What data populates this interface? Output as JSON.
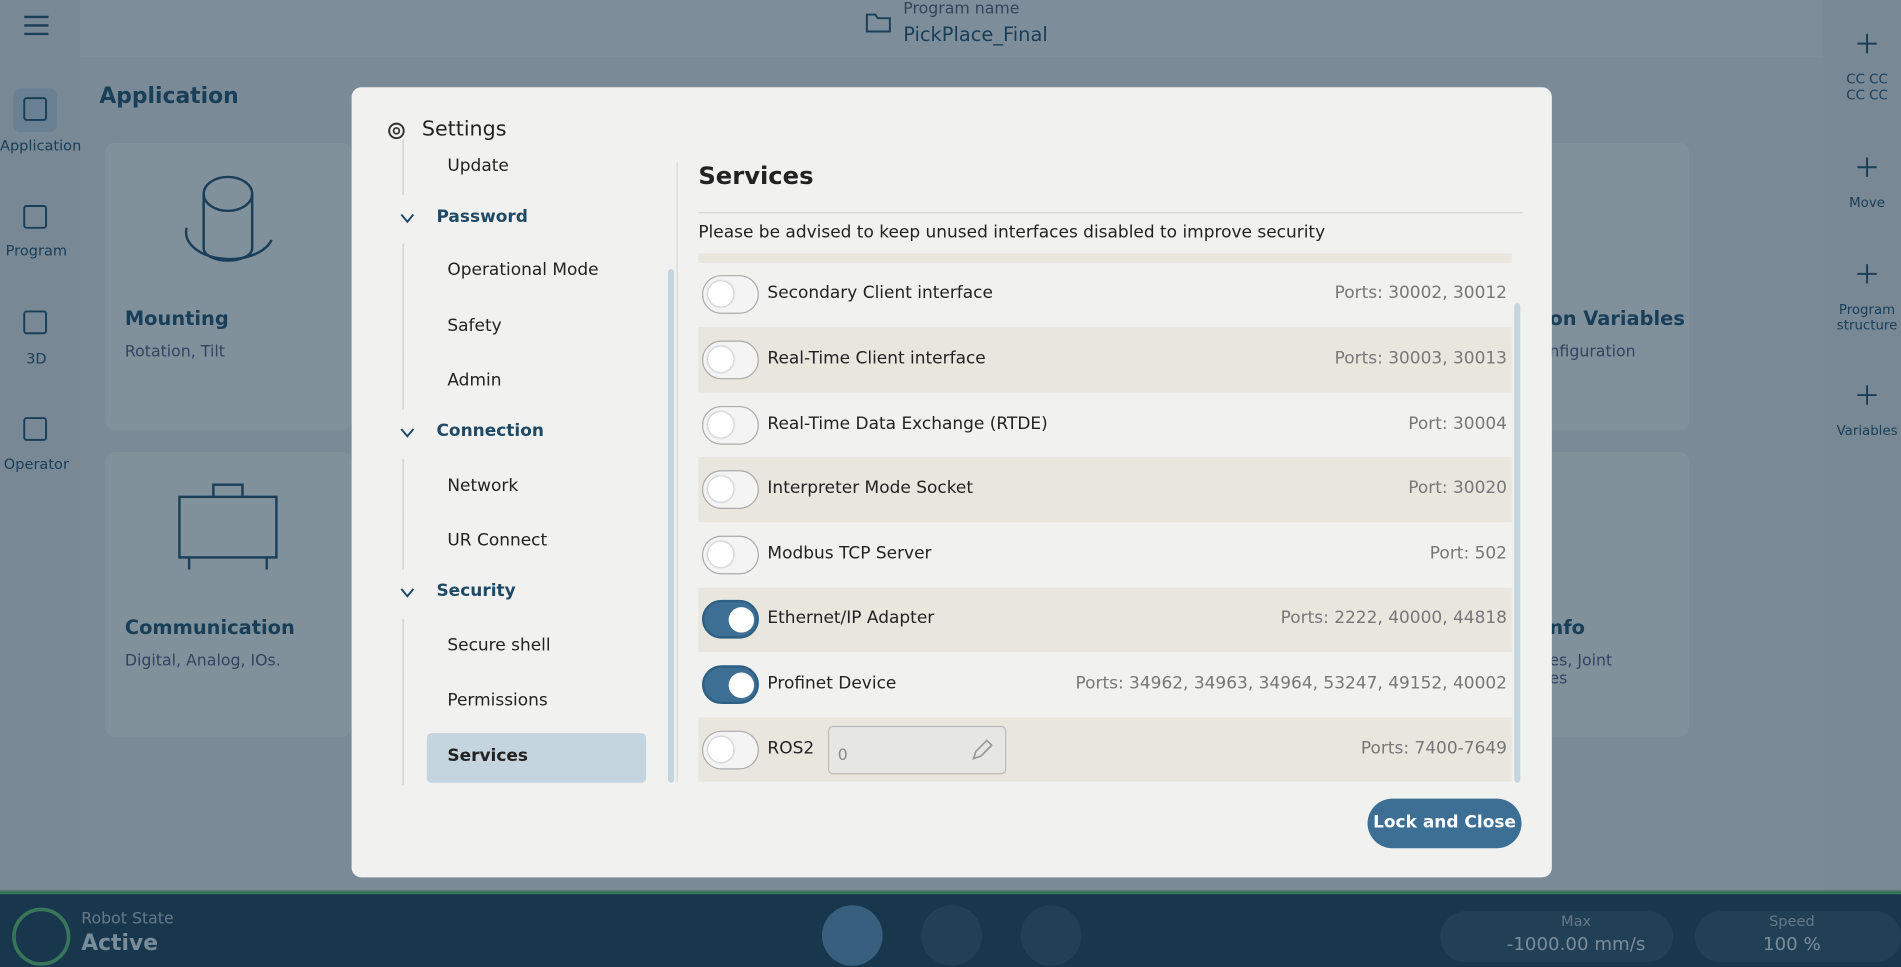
{
  "header": {
    "program_name_label": "Program name",
    "program_name": "PickPlace_Final"
  },
  "left_nav": [
    {
      "label": "Application",
      "active": true
    },
    {
      "label": "Program",
      "active": false
    },
    {
      "label": "3D",
      "active": false
    },
    {
      "label": "Operator",
      "active": false
    }
  ],
  "right_nav": [
    "CC CC\nCC CC",
    "Move",
    "Program\nstructure",
    "Variables"
  ],
  "page": {
    "title": "Application",
    "cards": [
      {
        "title": "Mounting",
        "subtitle": "Rotation, Tilt"
      },
      {
        "title": "Communication",
        "subtitle": "Digital, Analog, IOs."
      },
      {
        "title": "on Variables",
        "subtitle": "nfiguration"
      },
      {
        "title": "nfo",
        "subtitle": "es, Joint\nes"
      }
    ]
  },
  "dialog": {
    "title": "Settings",
    "nav": [
      {
        "label": "Update",
        "kind": "item",
        "selected": false
      },
      {
        "label": "Password",
        "kind": "section",
        "selected": false
      },
      {
        "label": "Operational Mode",
        "kind": "item",
        "selected": false
      },
      {
        "label": "Safety",
        "kind": "item",
        "selected": false
      },
      {
        "label": "Admin",
        "kind": "item",
        "selected": false
      },
      {
        "label": "Connection",
        "kind": "section",
        "selected": false
      },
      {
        "label": "Network",
        "kind": "item",
        "selected": false
      },
      {
        "label": "UR Connect",
        "kind": "item",
        "selected": false
      },
      {
        "label": "Security",
        "kind": "section",
        "selected": false
      },
      {
        "label": "Secure shell",
        "kind": "item",
        "selected": false
      },
      {
        "label": "Permissions",
        "kind": "item",
        "selected": false
      },
      {
        "label": "Services",
        "kind": "item",
        "selected": true
      }
    ],
    "section_title": "Services",
    "advisory": "Please be advised to keep unused interfaces disabled to improve security",
    "services": [
      {
        "name": "Secondary Client interface",
        "ports": "Ports: 30002, 30012",
        "enabled": false
      },
      {
        "name": "Real-Time Client interface",
        "ports": "Ports: 30003, 30013",
        "enabled": false
      },
      {
        "name": "Real-Time Data Exchange (RTDE)",
        "ports": "Port: 30004",
        "enabled": false
      },
      {
        "name": "Interpreter Mode Socket",
        "ports": "Port: 30020",
        "enabled": false
      },
      {
        "name": "Modbus TCP Server",
        "ports": "Port: 502",
        "enabled": false
      },
      {
        "name": "Ethernet/IP Adapter",
        "ports": "Ports: 2222, 40000, 44818",
        "enabled": true
      },
      {
        "name": "Profinet Device",
        "ports": "Ports: 34962, 34963, 34964, 53247, 49152, 40002",
        "enabled": true
      },
      {
        "name": "ROS2",
        "ports": "Ports: 7400-7649",
        "enabled": false,
        "input": "0"
      }
    ],
    "button": "Lock and Close"
  },
  "status_bar": {
    "robot_state_label": "Robot State",
    "robot_state": "Active",
    "max_label": "Max",
    "max_value": "-1000.00 mm/s",
    "speed_label": "Speed",
    "speed_value": "100 %"
  }
}
